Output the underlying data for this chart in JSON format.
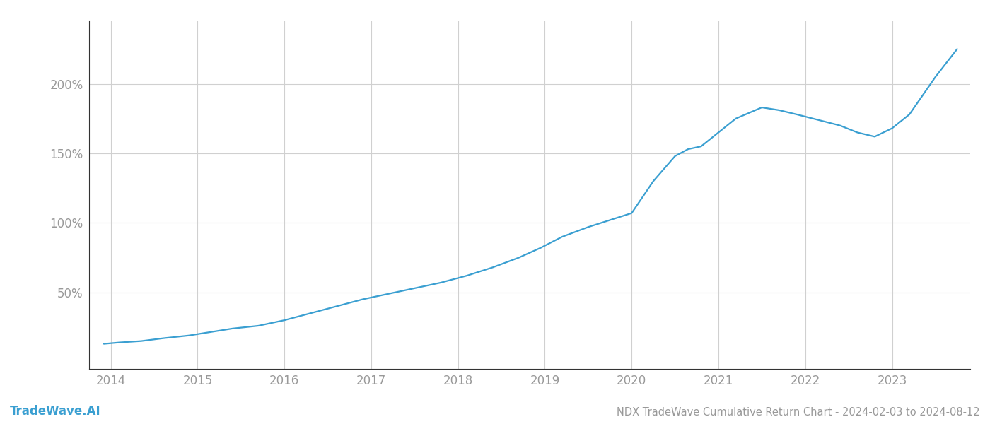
{
  "title": "NDX TradeWave Cumulative Return Chart - 2024-02-03 to 2024-08-12",
  "watermark": "TradeWave.AI",
  "line_color": "#3a9fd1",
  "background_color": "#ffffff",
  "grid_color": "#d0d0d0",
  "x_years": [
    2014,
    2015,
    2016,
    2017,
    2018,
    2019,
    2020,
    2021,
    2022,
    2023
  ],
  "x_values": [
    2013.92,
    2014.1,
    2014.35,
    2014.6,
    2014.9,
    2015.1,
    2015.4,
    2015.7,
    2016.0,
    2016.3,
    2016.6,
    2016.9,
    2017.2,
    2017.5,
    2017.8,
    2018.1,
    2018.4,
    2018.7,
    2018.95,
    2019.2,
    2019.5,
    2019.75,
    2020.0,
    2020.25,
    2020.5,
    2020.65,
    2020.8,
    2021.0,
    2021.2,
    2021.5,
    2021.7,
    2021.9,
    2022.15,
    2022.4,
    2022.6,
    2022.8,
    2023.0,
    2023.2,
    2023.5,
    2023.75
  ],
  "y_values": [
    13,
    14,
    15,
    17,
    19,
    21,
    24,
    26,
    30,
    35,
    40,
    45,
    49,
    53,
    57,
    62,
    68,
    75,
    82,
    90,
    97,
    102,
    107,
    130,
    148,
    153,
    155,
    165,
    175,
    183,
    181,
    178,
    174,
    170,
    165,
    162,
    168,
    178,
    205,
    225
  ],
  "yticks": [
    50,
    100,
    150,
    200
  ],
  "ytick_labels": [
    "50%",
    "100%",
    "150%",
    "200%"
  ],
  "ylim": [
    -5,
    245
  ],
  "xlim": [
    2013.75,
    2023.9
  ],
  "title_fontsize": 10.5,
  "watermark_fontsize": 12,
  "axis_label_color": "#999999",
  "tick_label_fontsize": 12,
  "spine_color": "#333333"
}
